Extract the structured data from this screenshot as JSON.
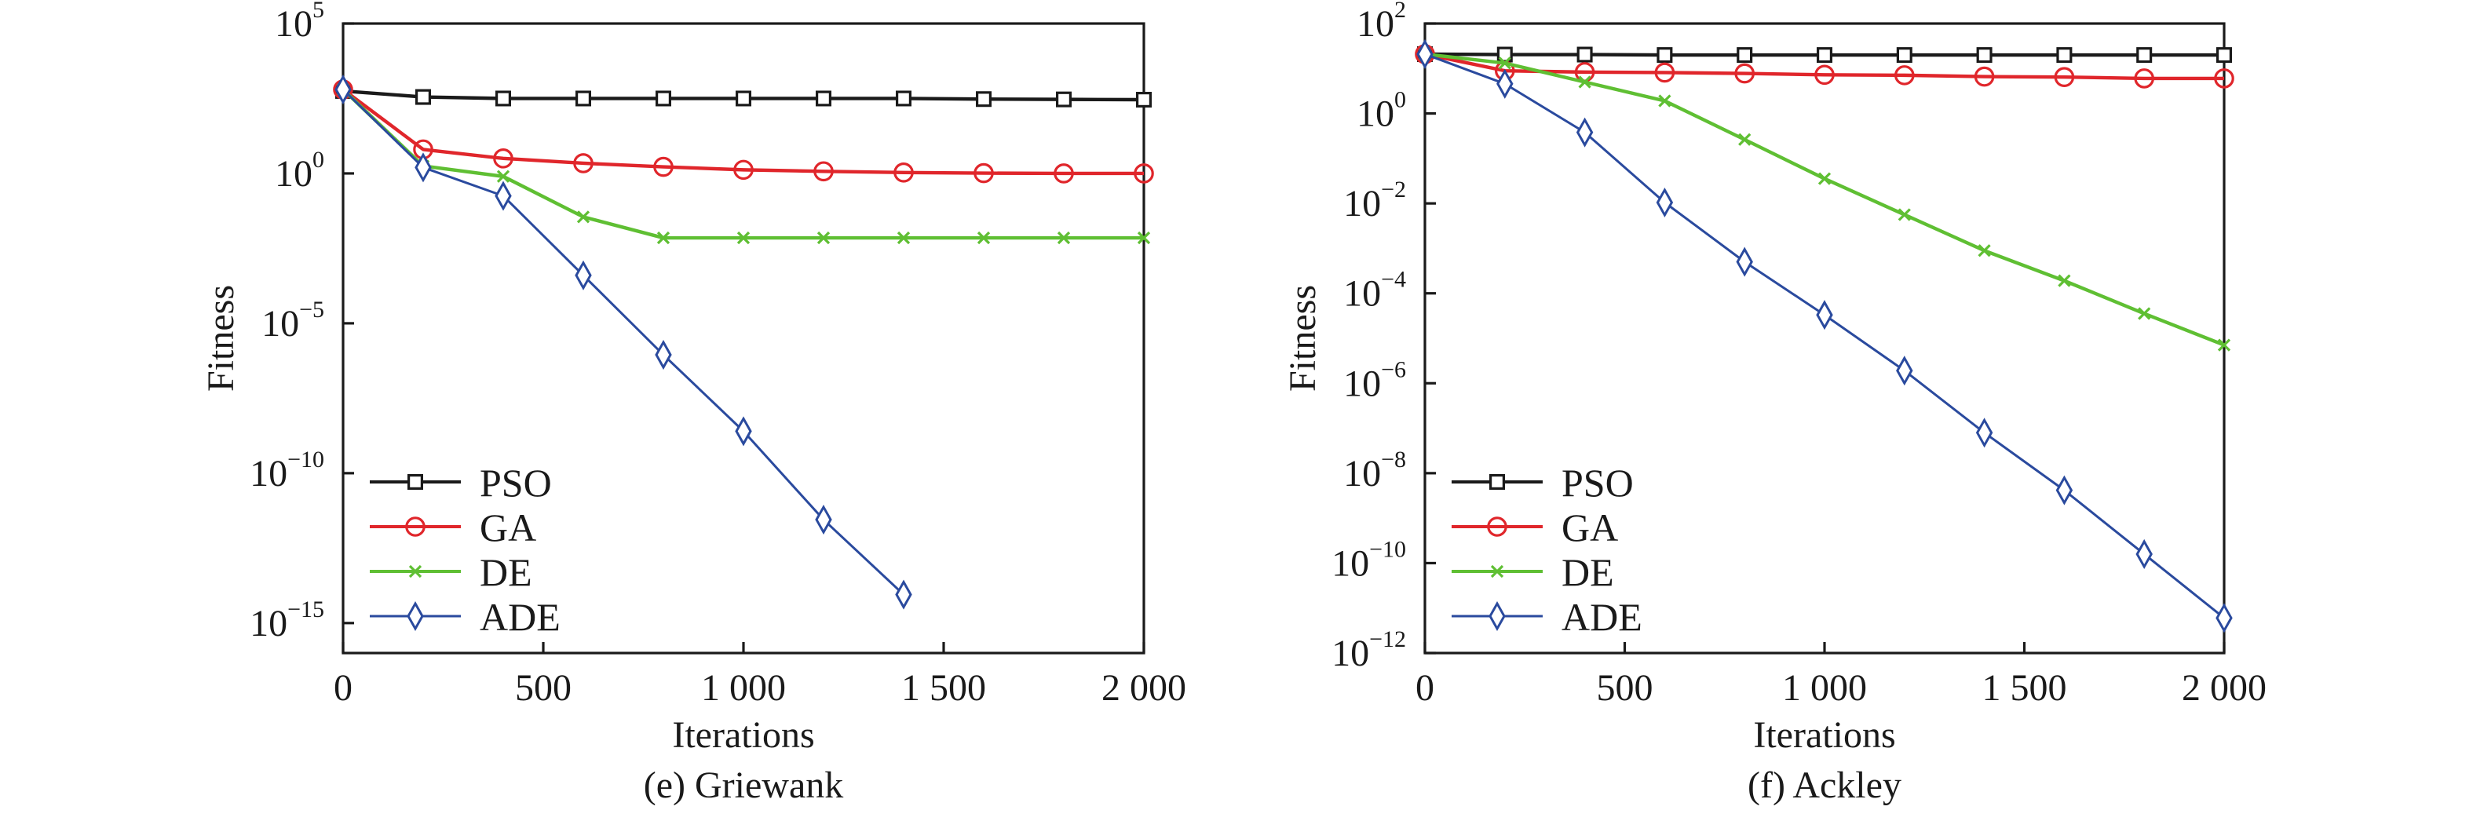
{
  "chart_data": [
    {
      "type": "line",
      "panel_label": "(e) Griewank",
      "title": "(e) Griewank",
      "xlabel": "Iterations",
      "ylabel": "Fitness",
      "yscale": "log",
      "xlim": [
        0,
        2000
      ],
      "ylim_exp": [
        -16,
        5
      ],
      "xticks": [
        0,
        500,
        1000,
        1500,
        2000
      ],
      "xtick_labels": [
        "0",
        "500",
        "1 000",
        "1 500",
        "2 000"
      ],
      "yticks_exp": [
        5,
        0,
        -5,
        -10,
        -15
      ],
      "ytick_labels": [
        {
          "base": "10",
          "exp": "5"
        },
        {
          "base": "10",
          "exp": "0"
        },
        {
          "base": "10",
          "exp": "−5"
        },
        {
          "base": "10",
          "exp": "−10"
        },
        {
          "base": "10",
          "exp": "−15"
        }
      ],
      "legend_position": "bottom-left",
      "grid": false,
      "x": [
        0,
        200,
        400,
        600,
        800,
        1000,
        1200,
        1400,
        1600,
        1800,
        2000
      ],
      "series": [
        {
          "name": "PSO",
          "color": "#1a1a1a",
          "marker": "square",
          "log10_values": [
            2.75,
            2.55,
            2.5,
            2.5,
            2.5,
            2.5,
            2.5,
            2.5,
            2.48,
            2.47,
            2.46
          ]
        },
        {
          "name": "GA",
          "color": "#e0262b",
          "marker": "circle",
          "log10_values": [
            2.8,
            0.8,
            0.5,
            0.34,
            0.22,
            0.12,
            0.07,
            0.03,
            0.01,
            0.0,
            0.0
          ]
        },
        {
          "name": "DE",
          "color": "#5fbf33",
          "marker": "x",
          "log10_values": [
            2.8,
            0.25,
            -0.1,
            -1.45,
            -2.15,
            -2.15,
            -2.15,
            -2.15,
            -2.15,
            -2.15,
            -2.15
          ]
        },
        {
          "name": "ADE",
          "color": "#2a4a9e",
          "marker": "diamond",
          "log10_values": [
            2.8,
            0.2,
            -0.75,
            -3.4,
            -6.05,
            -8.6,
            -11.55,
            -14.05,
            null,
            null,
            null
          ]
        }
      ]
    },
    {
      "type": "line",
      "panel_label": "(f) Ackley",
      "title": "(f) Ackley",
      "xlabel": "Iterations",
      "ylabel": "Fitness",
      "yscale": "log",
      "xlim": [
        0,
        2000
      ],
      "ylim_exp": [
        -12,
        2
      ],
      "xticks": [
        0,
        500,
        1000,
        1500,
        2000
      ],
      "xtick_labels": [
        "0",
        "500",
        "1 000",
        "1 500",
        "2 000"
      ],
      "yticks_exp": [
        2,
        0,
        -2,
        -4,
        -6,
        -8,
        -10,
        -12
      ],
      "ytick_labels": [
        {
          "base": "10",
          "exp": "2"
        },
        {
          "base": "10",
          "exp": "0"
        },
        {
          "base": "10",
          "exp": "−2"
        },
        {
          "base": "10",
          "exp": "−4"
        },
        {
          "base": "10",
          "exp": "−6"
        },
        {
          "base": "10",
          "exp": "−8"
        },
        {
          "base": "10",
          "exp": "−10"
        },
        {
          "base": "10",
          "exp": "−12"
        }
      ],
      "legend_position": "bottom-left",
      "grid": false,
      "x": [
        0,
        200,
        400,
        600,
        800,
        1000,
        1200,
        1400,
        1600,
        1800,
        2000
      ],
      "series": [
        {
          "name": "PSO",
          "color": "#1a1a1a",
          "marker": "square",
          "log10_values": [
            1.32,
            1.31,
            1.31,
            1.3,
            1.3,
            1.3,
            1.3,
            1.3,
            1.3,
            1.3,
            1.3
          ]
        },
        {
          "name": "GA",
          "color": "#e0262b",
          "marker": "circle",
          "log10_values": [
            1.32,
            0.95,
            0.92,
            0.91,
            0.89,
            0.86,
            0.85,
            0.82,
            0.81,
            0.78,
            0.78
          ]
        },
        {
          "name": "DE",
          "color": "#5fbf33",
          "marker": "x",
          "log10_values": [
            1.32,
            1.12,
            0.7,
            0.28,
            -0.58,
            -1.45,
            -2.25,
            -3.05,
            -3.72,
            -4.45,
            -5.15
          ]
        },
        {
          "name": "ADE",
          "color": "#2a4a9e",
          "marker": "diamond",
          "log10_values": [
            1.32,
            0.66,
            -0.42,
            -1.98,
            -3.3,
            -4.48,
            -5.72,
            -7.1,
            -8.38,
            -9.8,
            -11.22
          ]
        }
      ]
    }
  ]
}
